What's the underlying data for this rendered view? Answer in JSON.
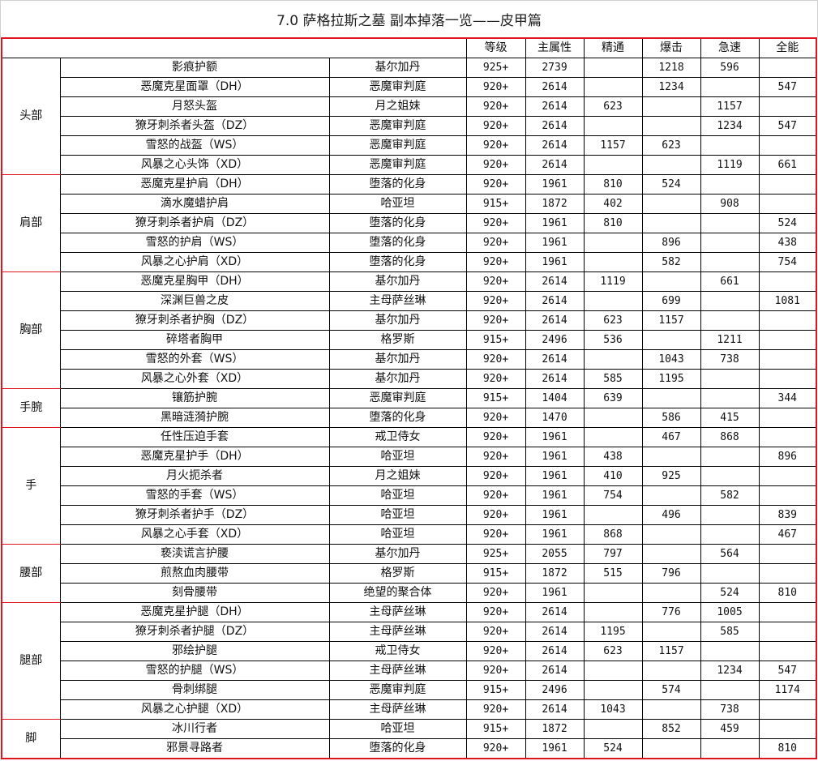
{
  "title": "7.0 萨格拉斯之墓 副本掉落一览——皮甲篇",
  "headers": [
    "",
    "",
    "",
    "等级",
    "主属性",
    "精通",
    "爆击",
    "急速",
    "全能"
  ],
  "colors": {
    "group_border": "#e0141e",
    "cell_border": "#000000"
  },
  "groups": [
    {
      "slot": "头部",
      "items": [
        [
          "影痕护额",
          "基尔加丹",
          "925+",
          "2739",
          "",
          "1218",
          "596",
          ""
        ],
        [
          "恶魔克星面罩（DH）",
          "恶魔审判庭",
          "920+",
          "2614",
          "",
          "1234",
          "",
          "547"
        ],
        [
          "月怒头盔",
          "月之姐妹",
          "920+",
          "2614",
          "623",
          "",
          "1157",
          ""
        ],
        [
          "獠牙刺杀者头盔（DZ）",
          "恶魔审判庭",
          "920+",
          "2614",
          "",
          "",
          "1234",
          "547"
        ],
        [
          "雪怒的战盔（WS）",
          "恶魔审判庭",
          "920+",
          "2614",
          "1157",
          "623",
          "",
          ""
        ],
        [
          "风暴之心头饰（XD）",
          "恶魔审判庭",
          "920+",
          "2614",
          "",
          "",
          "1119",
          "661"
        ]
      ]
    },
    {
      "slot": "肩部",
      "items": [
        [
          "恶魔克星护肩（DH）",
          "堕落的化身",
          "920+",
          "1961",
          "810",
          "524",
          "",
          ""
        ],
        [
          "滴水魔蜡护肩",
          "哈亚坦",
          "915+",
          "1872",
          "402",
          "",
          "908",
          ""
        ],
        [
          "獠牙刺杀者护肩（DZ）",
          "堕落的化身",
          "920+",
          "1961",
          "810",
          "",
          "",
          "524"
        ],
        [
          "雪怒的护肩（WS）",
          "堕落的化身",
          "920+",
          "1961",
          "",
          "896",
          "",
          "438"
        ],
        [
          "风暴之心护肩（XD）",
          "堕落的化身",
          "920+",
          "1961",
          "",
          "582",
          "",
          "754"
        ]
      ]
    },
    {
      "slot": "胸部",
      "items": [
        [
          "恶魔克星胸甲（DH）",
          "基尔加丹",
          "920+",
          "2614",
          "1119",
          "",
          "661",
          ""
        ],
        [
          "深渊巨兽之皮",
          "主母萨丝琳",
          "920+",
          "2614",
          "",
          "699",
          "",
          "1081"
        ],
        [
          "獠牙刺杀者护胸（DZ）",
          "基尔加丹",
          "920+",
          "2614",
          "623",
          "1157",
          "",
          ""
        ],
        [
          "碎塔者胸甲",
          "格罗斯",
          "915+",
          "2496",
          "536",
          "",
          "1211",
          ""
        ],
        [
          "雪怒的外套（WS）",
          "基尔加丹",
          "920+",
          "2614",
          "",
          "1043",
          "738",
          ""
        ],
        [
          "风暴之心外套（XD）",
          "基尔加丹",
          "920+",
          "2614",
          "585",
          "1195",
          "",
          ""
        ]
      ]
    },
    {
      "slot": "手腕",
      "items": [
        [
          "镶筋护腕",
          "恶魔审判庭",
          "915+",
          "1404",
          "639",
          "",
          "",
          "344"
        ],
        [
          "黑暗涟漪护腕",
          "堕落的化身",
          "920+",
          "1470",
          "",
          "586",
          "415",
          ""
        ]
      ]
    },
    {
      "slot": "手",
      "items": [
        [
          "任性压迫手套",
          "戒卫侍女",
          "920+",
          "1961",
          "",
          "467",
          "868",
          ""
        ],
        [
          "恶魔克星护手（DH）",
          "哈亚坦",
          "920+",
          "1961",
          "438",
          "",
          "",
          "896"
        ],
        [
          "月火扼杀者",
          "月之姐妹",
          "920+",
          "1961",
          "410",
          "925",
          "",
          ""
        ],
        [
          "雪怒的手套（WS）",
          "哈亚坦",
          "920+",
          "1961",
          "754",
          "",
          "582",
          ""
        ],
        [
          "獠牙刺杀者护手（DZ）",
          "哈亚坦",
          "920+",
          "1961",
          "",
          "496",
          "",
          "839"
        ],
        [
          "风暴之心手套（XD）",
          "哈亚坦",
          "920+",
          "1961",
          "868",
          "",
          "",
          "467"
        ]
      ]
    },
    {
      "slot": "腰部",
      "items": [
        [
          "亵渎谎言护腰",
          "基尔加丹",
          "925+",
          "2055",
          "797",
          "",
          "564",
          ""
        ],
        [
          "煎熬血肉腰带",
          "格罗斯",
          "915+",
          "1872",
          "515",
          "796",
          "",
          ""
        ],
        [
          "刻骨腰带",
          "绝望的聚合体",
          "920+",
          "1961",
          "",
          "",
          "524",
          "810"
        ]
      ]
    },
    {
      "slot": "腿部",
      "items": [
        [
          "恶魔克星护腿（DH）",
          "主母萨丝琳",
          "920+",
          "2614",
          "",
          "776",
          "1005",
          ""
        ],
        [
          "獠牙刺杀者护腿（DZ）",
          "主母萨丝琳",
          "920+",
          "2614",
          "1195",
          "",
          "585",
          ""
        ],
        [
          "邪绘护腿",
          "戒卫侍女",
          "920+",
          "2614",
          "623",
          "1157",
          "",
          ""
        ],
        [
          "雪怒的护腿（WS）",
          "主母萨丝琳",
          "920+",
          "2614",
          "",
          "",
          "1234",
          "547"
        ],
        [
          "骨刺绑腿",
          "恶魔审判庭",
          "915+",
          "2496",
          "",
          "574",
          "",
          "1174"
        ],
        [
          "风暴之心护腿（XD）",
          "主母萨丝琳",
          "920+",
          "2614",
          "1043",
          "",
          "738",
          ""
        ]
      ]
    },
    {
      "slot": "脚",
      "items": [
        [
          "冰川行者",
          "哈亚坦",
          "915+",
          "1872",
          "",
          "852",
          "459",
          ""
        ],
        [
          "邪景寻路者",
          "堕落的化身",
          "920+",
          "1961",
          "524",
          "",
          "",
          "810"
        ]
      ]
    }
  ]
}
